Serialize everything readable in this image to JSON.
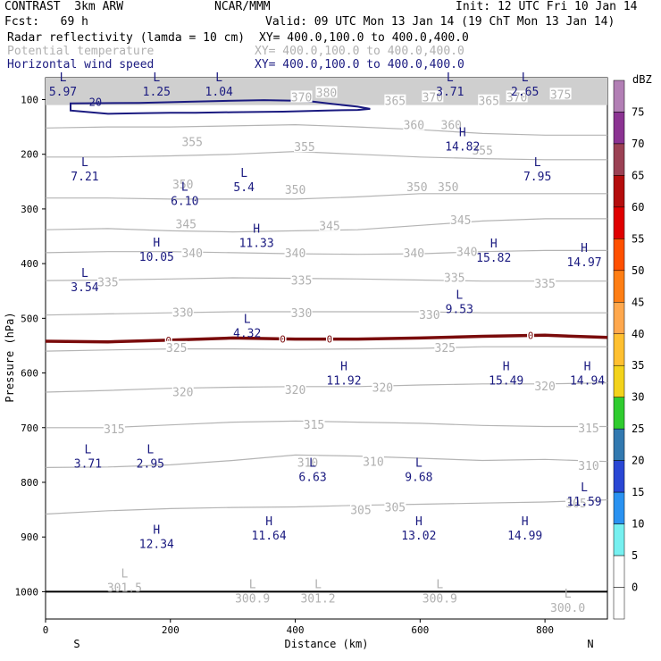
{
  "header": {
    "model": "CONTRAST  3km ARW",
    "org": "NCAR/MMM",
    "init": "Init: 12 UTC Fri 10 Jan 14",
    "fcst": "Fcst:   69 h",
    "valid": "Valid: 09 UTC Mon 13 Jan 14 (19 ChT Mon 13 Jan 14)",
    "fields": [
      {
        "name": "Radar reflectivity (lamda = 10 cm)",
        "xy": "XY= 400.0,100.0 to 400.0,400.0",
        "color": "#000000"
      },
      {
        "name": "Potential temperature",
        "xy": "XY= 400.0,100.0 to 400.0,400.0",
        "color": "#b0b0b0"
      },
      {
        "name": "Horizontal wind speed",
        "xy": "XY= 400.0,100.0 to 400.0,400.0",
        "color": "#1a1a80"
      }
    ]
  },
  "chart_data": {
    "type": "contour",
    "xlabel": "Distance (km)",
    "ylabel": "Pressure (hPa)",
    "x_range": [
      0,
      900
    ],
    "y_range": [
      1050,
      60
    ],
    "x_ticks": [
      0,
      200,
      400,
      600,
      800
    ],
    "y_ticks": [
      100,
      200,
      300,
      400,
      500,
      600,
      700,
      800,
      900,
      1000
    ],
    "x_end_labels": {
      "left": "S",
      "right": "N"
    },
    "theta_contours": [
      {
        "level": 305,
        "p": [
          858,
          852,
          848,
          846,
          845,
          842,
          840,
          838,
          836,
          832
        ]
      },
      {
        "level": 310,
        "p": [
          773,
          772,
          768,
          760,
          750,
          752,
          756,
          760,
          758,
          762
        ]
      },
      {
        "level": 315,
        "p": [
          700,
          700,
          695,
          690,
          688,
          690,
          692,
          696,
          698,
          698
        ]
      },
      {
        "level": 320,
        "p": [
          635,
          632,
          628,
          626,
          625,
          625,
          622,
          620,
          620,
          618
        ]
      },
      {
        "level": 325,
        "p": [
          560,
          558,
          556,
          556,
          557,
          556,
          555,
          552,
          552,
          552
        ]
      },
      {
        "level": 330,
        "p": [
          494,
          492,
          490,
          488,
          488,
          488,
          488,
          490,
          490,
          490
        ]
      },
      {
        "level": 335,
        "p": [
          431,
          430,
          428,
          426,
          427,
          428,
          430,
          432,
          432,
          432
        ]
      },
      {
        "level": 340,
        "p": [
          380,
          378,
          378,
          380,
          382,
          383,
          382,
          378,
          376,
          376
        ]
      },
      {
        "level": 345,
        "p": [
          338,
          336,
          340,
          342,
          340,
          338,
          330,
          322,
          318,
          318
        ]
      },
      {
        "level": 350,
        "p": [
          280,
          280,
          282,
          282,
          282,
          278,
          272,
          272,
          272,
          272
        ]
      },
      {
        "level": 355,
        "p": [
          205,
          205,
          203,
          200,
          195,
          200,
          205,
          208,
          210,
          210
        ]
      },
      {
        "level": 360,
        "p": [
          152,
          150,
          150,
          148,
          146,
          150,
          155,
          162,
          165,
          165
        ]
      }
    ],
    "theta_labels": [
      {
        "text": "380",
        "x": 450,
        "p": 87
      },
      {
        "text": "375",
        "x": 825,
        "p": 90
      },
      {
        "text": "370",
        "x": 410,
        "p": 95
      },
      {
        "text": "370",
        "x": 620,
        "p": 95
      },
      {
        "text": "370",
        "x": 755,
        "p": 95
      },
      {
        "text": "365",
        "x": 560,
        "p": 102
      },
      {
        "text": "365",
        "x": 710,
        "p": 102
      },
      {
        "text": "360",
        "x": 590,
        "p": 146
      },
      {
        "text": "360",
        "x": 650,
        "p": 146
      },
      {
        "text": "355",
        "x": 235,
        "p": 177
      },
      {
        "text": "355",
        "x": 415,
        "p": 186
      },
      {
        "text": "355",
        "x": 700,
        "p": 192
      },
      {
        "text": "350",
        "x": 220,
        "p": 254
      },
      {
        "text": "350",
        "x": 400,
        "p": 264
      },
      {
        "text": "350",
        "x": 595,
        "p": 259
      },
      {
        "text": "350",
        "x": 645,
        "p": 259
      },
      {
        "text": "345",
        "x": 225,
        "p": 327
      },
      {
        "text": "345",
        "x": 455,
        "p": 330
      },
      {
        "text": "345",
        "x": 665,
        "p": 320
      },
      {
        "text": "340",
        "x": 235,
        "p": 380
      },
      {
        "text": "340",
        "x": 400,
        "p": 380
      },
      {
        "text": "340",
        "x": 590,
        "p": 380
      },
      {
        "text": "340",
        "x": 675,
        "p": 378
      },
      {
        "text": "335",
        "x": 100,
        "p": 433
      },
      {
        "text": "335",
        "x": 410,
        "p": 430
      },
      {
        "text": "335",
        "x": 655,
        "p": 425
      },
      {
        "text": "335",
        "x": 800,
        "p": 436
      },
      {
        "text": "330",
        "x": 220,
        "p": 489
      },
      {
        "text": "330",
        "x": 410,
        "p": 490
      },
      {
        "text": "330",
        "x": 615,
        "p": 493
      },
      {
        "text": "325",
        "x": 210,
        "p": 553
      },
      {
        "text": "325",
        "x": 640,
        "p": 553
      },
      {
        "text": "320",
        "x": 220,
        "p": 634
      },
      {
        "text": "320",
        "x": 400,
        "p": 630
      },
      {
        "text": "320",
        "x": 540,
        "p": 626
      },
      {
        "text": "320",
        "x": 800,
        "p": 624
      },
      {
        "text": "315",
        "x": 110,
        "p": 702
      },
      {
        "text": "315",
        "x": 430,
        "p": 694
      },
      {
        "text": "315",
        "x": 870,
        "p": 700
      },
      {
        "text": "310",
        "x": 420,
        "p": 763
      },
      {
        "text": "310",
        "x": 525,
        "p": 762
      },
      {
        "text": "310",
        "x": 870,
        "p": 769
      },
      {
        "text": "305",
        "x": 505,
        "p": 850
      },
      {
        "text": "305",
        "x": 560,
        "p": 845
      },
      {
        "text": "305",
        "x": 850,
        "p": 838
      }
    ],
    "theta_extrema": [
      {
        "kind": "L",
        "value": "301.5",
        "x": 95,
        "p": 990
      },
      {
        "kind": "L",
        "value": "300.9",
        "x": 300,
        "p": 1010
      },
      {
        "kind": "L",
        "value": "301.2",
        "x": 405,
        "p": 1010
      },
      {
        "kind": "L",
        "value": "300.9",
        "x": 600,
        "p": 1010
      },
      {
        "kind": "L",
        "value": "300.0",
        "x": 805,
        "p": 1027
      }
    ],
    "wind_contours": [
      {
        "level": 20,
        "label": "20",
        "x": [
          40,
          150,
          230,
          300,
          350,
          400,
          430,
          460,
          500,
          520,
          500,
          450,
          380,
          300,
          240,
          200,
          150,
          100,
          40
        ],
        "p": [
          107,
          106,
          104,
          102,
          101,
          102,
          104,
          108,
          113,
          117,
          119,
          120,
          122,
          123,
          124,
          124,
          125,
          126,
          120
        ]
      }
    ],
    "wind_extrema": [
      {
        "kind": "L",
        "value": "5.97",
        "x": 5,
        "p": 83
      },
      {
        "kind": "L",
        "value": "1.25",
        "x": 155,
        "p": 83
      },
      {
        "kind": "L",
        "value": "1.04",
        "x": 255,
        "p": 83
      },
      {
        "kind": "L",
        "value": "3.71",
        "x": 625,
        "p": 83
      },
      {
        "kind": "L",
        "value": "2.65",
        "x": 745,
        "p": 83
      },
      {
        "kind": "H",
        "value": "14.82",
        "x": 645,
        "p": 183
      },
      {
        "kind": "L",
        "value": "7.21",
        "x": 40,
        "p": 238
      },
      {
        "kind": "L",
        "value": "7.95",
        "x": 765,
        "p": 238
      },
      {
        "kind": "L",
        "value": "5.4",
        "x": 295,
        "p": 258
      },
      {
        "kind": "L",
        "value": "6.10",
        "x": 200,
        "p": 283
      },
      {
        "kind": "H",
        "value": "11.33",
        "x": 315,
        "p": 360
      },
      {
        "kind": "H",
        "value": "10.05",
        "x": 155,
        "p": 385
      },
      {
        "kind": "H",
        "value": "15.82",
        "x": 695,
        "p": 387
      },
      {
        "kind": "H",
        "value": "14.97",
        "x": 840,
        "p": 395
      },
      {
        "kind": "L",
        "value": "3.54",
        "x": 40,
        "p": 441
      },
      {
        "kind": "L",
        "value": "9.53",
        "x": 640,
        "p": 481
      },
      {
        "kind": "L",
        "value": "4.32",
        "x": 300,
        "p": 525
      },
      {
        "kind": "H",
        "value": "11.92",
        "x": 455,
        "p": 611
      },
      {
        "kind": "H",
        "value": "15.49",
        "x": 715,
        "p": 611
      },
      {
        "kind": "H",
        "value": "14.94",
        "x": 845,
        "p": 611
      },
      {
        "kind": "L",
        "value": "3.71",
        "x": 45,
        "p": 763
      },
      {
        "kind": "L",
        "value": "2.95",
        "x": 145,
        "p": 763
      },
      {
        "kind": "L",
        "value": "6.63",
        "x": 405,
        "p": 788
      },
      {
        "kind": "L",
        "value": "9.68",
        "x": 575,
        "p": 788
      },
      {
        "kind": "L",
        "value": "11.59",
        "x": 840,
        "p": 833
      },
      {
        "kind": "H",
        "value": "11.64",
        "x": 335,
        "p": 895
      },
      {
        "kind": "H",
        "value": "13.02",
        "x": 575,
        "p": 895
      },
      {
        "kind": "H",
        "value": "14.99",
        "x": 745,
        "p": 895
      },
      {
        "kind": "H",
        "value": "12.34",
        "x": 155,
        "p": 910
      }
    ],
    "freezing_level": {
      "label": "0",
      "x": [
        0,
        100,
        200,
        300,
        400,
        500,
        600,
        700,
        800,
        900
      ],
      "p": [
        542,
        543,
        540,
        536,
        538,
        538,
        536,
        533,
        531,
        535
      ],
      "label_x": [
        197,
        380,
        455,
        777
      ]
    },
    "reflectivity_overlay_top": {
      "p_top": 60,
      "p_bottom": 110
    },
    "colorbar": {
      "unit": "dBZ",
      "levels": [
        75,
        70,
        65,
        60,
        55,
        50,
        45,
        40,
        35,
        30,
        25,
        20,
        15,
        10,
        5,
        0
      ],
      "colors": [
        "#b27fb5",
        "#8b3392",
        "#9b4154",
        "#b40d0d",
        "#df0000",
        "#ff5000",
        "#ff7e14",
        "#ffa84d",
        "#ffc030",
        "#f3d31b",
        "#2fcc2f",
        "#3279b0",
        "#2a47d4",
        "#2a92f1",
        "#76f0f0",
        "#ffffff",
        "#ffffff"
      ]
    }
  }
}
